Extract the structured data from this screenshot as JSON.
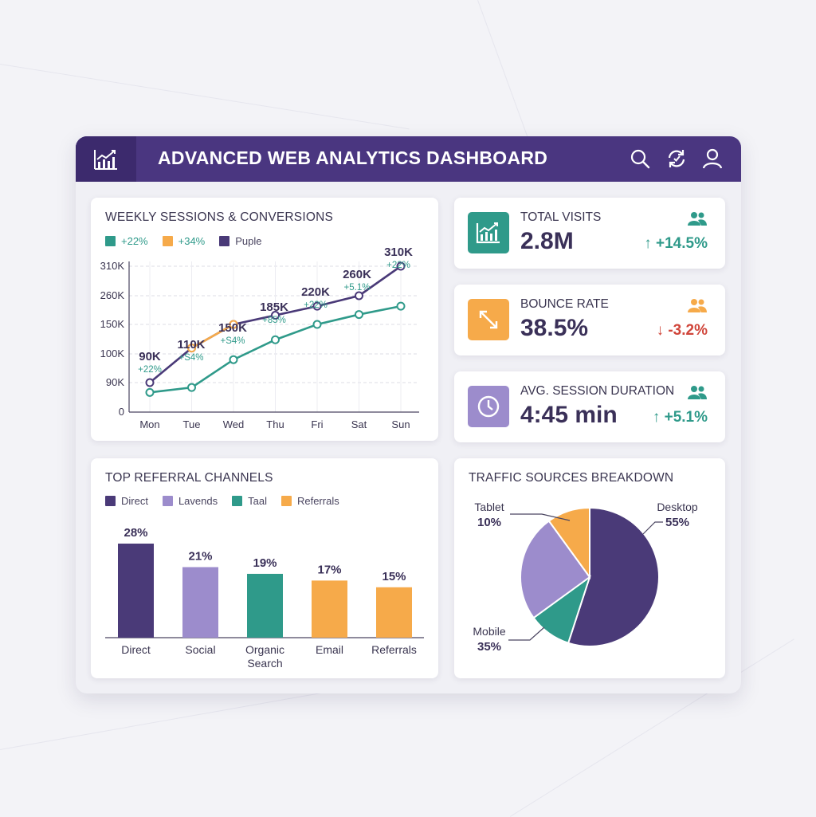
{
  "app": {
    "title": "ADVANCED WEB ANALYTICS DASHBOARD",
    "logo_icon": "bar-chart-trend-icon",
    "header_icons": [
      "search-icon",
      "refresh-icon",
      "user-icon"
    ]
  },
  "colors": {
    "header": "#4a3680",
    "purple": "#4a3a78",
    "lavender": "#9c8ccc",
    "teal": "#2f9a8a",
    "orange": "#f6aa4a",
    "positive": "#2f9a8a",
    "negative": "#d0453a"
  },
  "weekly": {
    "title": "WEEKLY SESSIONS & CONVERSIONS",
    "legend": [
      {
        "label": "+22%",
        "color": "#2f9a8a"
      },
      {
        "label": "+34%",
        "color": "#f6aa4a"
      },
      {
        "label": "Puple",
        "color": "#4a3a78"
      }
    ]
  },
  "kpis": [
    {
      "label": "TOTAL VISITS",
      "value": "2.8M",
      "delta": "+14.5%",
      "direction": "up",
      "icon": "line-chart-icon",
      "icon_bg": "#2f9a8a"
    },
    {
      "label": "BOUNCE RATE",
      "value": "38.5%",
      "delta": "-3.2%",
      "direction": "down",
      "icon": "expand-arrows-icon",
      "icon_bg": "#f6aa4a"
    },
    {
      "label": "AVG. SESSION DURATION",
      "value": "4:45 min",
      "delta": "+5.1%",
      "direction": "up",
      "icon": "clock-icon",
      "icon_bg": "#9c8ccc"
    }
  ],
  "referral": {
    "title": "TOP REFERRAL CHANNELS",
    "legend": [
      {
        "label": "Direct",
        "color": "#4a3a78"
      },
      {
        "label": "Lavends",
        "color": "#9c8ccc"
      },
      {
        "label": "Taal",
        "color": "#2f9a8a"
      },
      {
        "label": "Referrals",
        "color": "#f6aa4a"
      }
    ]
  },
  "traffic": {
    "title": "TRAFFIC SOURCES BREAKDOWN"
  },
  "chart_data": [
    {
      "type": "line",
      "title": "WEEKLY SESSIONS & CONVERSIONS",
      "categories": [
        "Mon",
        "Tue",
        "Wed",
        "Thu",
        "Fri",
        "Sat",
        "Sun"
      ],
      "y_ticks": [
        "0",
        "90K",
        "100K",
        "150K",
        "260K",
        "310K"
      ],
      "series": [
        {
          "color": "#4a3a78",
          "values": [
            90,
            110,
            150,
            185,
            220,
            260,
            310
          ]
        },
        {
          "color": "#2f9a8a",
          "values": [
            60,
            75,
            98,
            124,
            150,
            188,
            220
          ]
        },
        {
          "color": "#f6aa4a",
          "values": [
            null,
            110,
            150,
            null,
            null,
            null,
            null
          ]
        }
      ],
      "point_labels": [
        {
          "value": "90K",
          "change": "+22%"
        },
        {
          "value": "110K",
          "change": "+S4%"
        },
        {
          "value": "150K",
          "change": "+S4%"
        },
        {
          "value": "185K",
          "change": "+85%"
        },
        {
          "value": "220K",
          "change": "+22%"
        },
        {
          "value": "260K",
          "change": "+5.1%"
        },
        {
          "value": "310K",
          "change": "+22%"
        }
      ],
      "grid": true
    },
    {
      "type": "bar",
      "title": "TOP REFERRAL CHANNELS",
      "categories": [
        "Direct",
        "Social",
        "Organic Search",
        "Email",
        "Referrals"
      ],
      "values": [
        28,
        21,
        19,
        17,
        15
      ],
      "value_labels": [
        "28%",
        "21%",
        "19%",
        "17%",
        "15%"
      ],
      "colors": [
        "#4a3a78",
        "#9c8ccc",
        "#2f9a8a",
        "#f6aa4a",
        "#f6aa4a"
      ],
      "ylim": [
        0,
        30
      ]
    },
    {
      "type": "pie",
      "title": "TRAFFIC SOURCES BREAKDOWN",
      "slices": [
        {
          "label": "Desktop",
          "value": 55,
          "value_label": "55%",
          "color": "#4a3a78"
        },
        {
          "label": "Mobile",
          "value": 35,
          "value_label": "35%",
          "color": "#2f9a8a"
        },
        {
          "label": "Tablet",
          "value": 10,
          "value_label": "10%",
          "color": "#f6aa4a"
        }
      ],
      "drawn_shares": {
        "Desktop": 55,
        "Mobile-teal": 10,
        "Lavender": 25,
        "Tablet": 10
      }
    }
  ]
}
